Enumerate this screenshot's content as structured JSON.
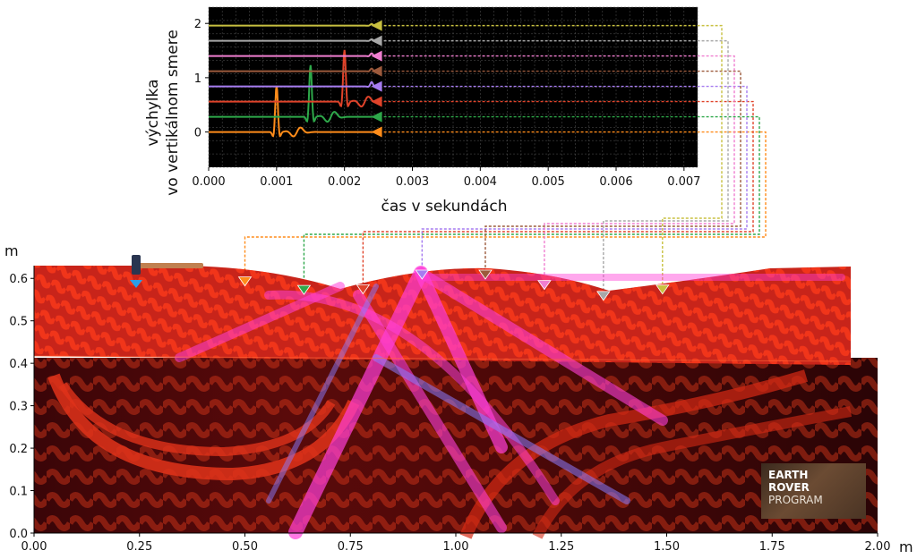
{
  "chart_data": [
    {
      "type": "line",
      "title": "",
      "xlabel": "čas v sekundách",
      "ylabel": "výchylka vo vertikálnom smere",
      "xlim": [
        0,
        0.0072
      ],
      "ylim": [
        -0.65,
        2.3
      ],
      "xticks": [
        "0.000",
        "0.001",
        "0.002",
        "0.003",
        "0.004",
        "0.005",
        "0.006",
        "0.007"
      ],
      "yticks": [
        "0",
        "1",
        "2"
      ],
      "background": "#000000",
      "grid": true,
      "series": [
        {
          "color": "#ff8c1a",
          "baseline": 0.0,
          "pulse_time": 0.001,
          "amplitude": 0.85
        },
        {
          "color": "#2ea84a",
          "baseline": 0.28,
          "pulse_time": 0.0015,
          "amplitude": 0.95
        },
        {
          "color": "#e0432a",
          "baseline": 0.56,
          "pulse_time": 0.002,
          "amplitude": 0.95
        },
        {
          "color": "#a67cf0",
          "baseline": 0.84,
          "pulse_time": 0.0024,
          "amplitude": 0.08
        },
        {
          "color": "#9c5a3c",
          "baseline": 1.12,
          "pulse_time": 0.0024,
          "amplitude": 0.05
        },
        {
          "color": "#f07ed0",
          "baseline": 1.4,
          "pulse_time": 0.0024,
          "amplitude": 0.05
        },
        {
          "color": "#a8a8a8",
          "baseline": 1.68,
          "pulse_time": 0.0024,
          "amplitude": 0.03
        },
        {
          "color": "#c8c040",
          "baseline": 1.96,
          "pulse_time": 0.0024,
          "amplitude": 0.03
        }
      ]
    },
    {
      "type": "heatmap",
      "title": "",
      "xlabel": "m",
      "ylabel": "m",
      "xlim": [
        0,
        2.0
      ],
      "ylim": [
        0,
        0.63
      ],
      "xticks": [
        "0.00",
        "0.25",
        "0.50",
        "0.75",
        "1.00",
        "1.25",
        "1.50",
        "1.75",
        "2.00"
      ],
      "yticks": [
        "0.0",
        "0.1",
        "0.2",
        "0.3",
        "0.4",
        "0.5",
        "0.6"
      ],
      "layer_boundary_m": 0.42,
      "source": {
        "x": 0.25,
        "y": 0.6,
        "icon": "hammer-icon"
      },
      "receivers": [
        {
          "x": 0.5,
          "color": "#ff8c1a"
        },
        {
          "x": 0.64,
          "color": "#2ea84a"
        },
        {
          "x": 0.78,
          "color": "#e0432a"
        },
        {
          "x": 0.92,
          "color": "#a67cf0"
        },
        {
          "x": 1.07,
          "color": "#9c5a3c"
        },
        {
          "x": 1.21,
          "color": "#f07ed0"
        },
        {
          "x": 1.35,
          "color": "#a8a8a8"
        },
        {
          "x": 1.49,
          "color": "#c8c040"
        }
      ]
    }
  ],
  "logo": {
    "line1": "EARTH",
    "line2": "ROVER",
    "line3": "PROGRAM"
  }
}
